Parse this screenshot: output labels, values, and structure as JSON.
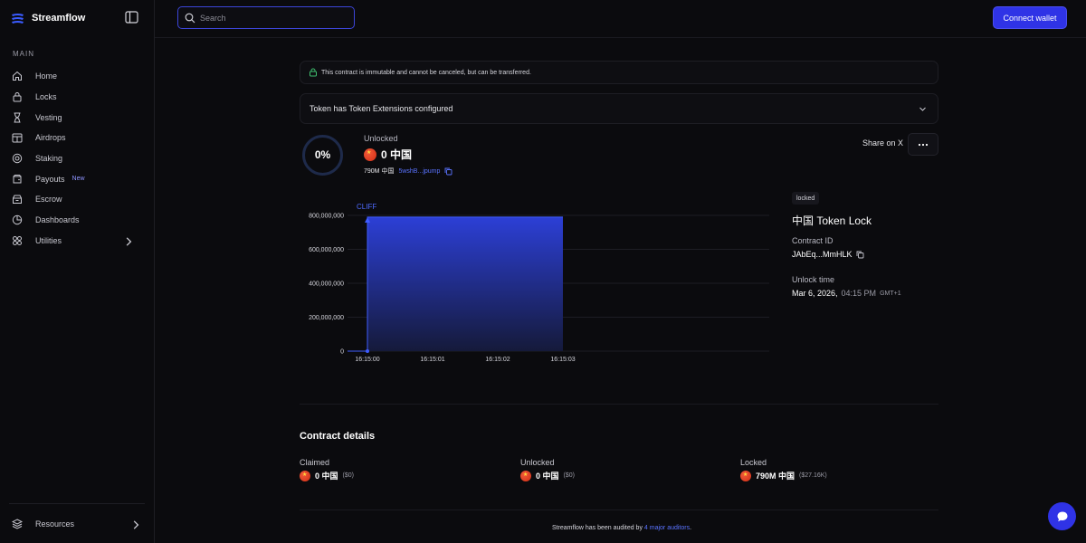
{
  "app": {
    "name": "Streamflow",
    "accent": "#2f33e6"
  },
  "sidebar": {
    "section_label": "MAIN",
    "items": [
      {
        "label": "Home",
        "icon": "home-icon"
      },
      {
        "label": "Locks",
        "icon": "lock-icon"
      },
      {
        "label": "Vesting",
        "icon": "hourglass-icon"
      },
      {
        "label": "Airdrops",
        "icon": "airdrop-icon"
      },
      {
        "label": "Staking",
        "icon": "staking-icon"
      },
      {
        "label": "Payouts",
        "icon": "payouts-icon",
        "badge": "New"
      },
      {
        "label": "Escrow",
        "icon": "escrow-icon"
      },
      {
        "label": "Dashboards",
        "icon": "dashboard-icon"
      },
      {
        "label": "Utilities",
        "icon": "utilities-icon"
      }
    ],
    "resources_label": "Resources"
  },
  "topbar": {
    "search_placeholder": "Search",
    "connect_label": "Connect wallet"
  },
  "notice": "This contract is immutable and cannot be canceled, but can be transferred.",
  "extensions_label": "Token has Token Extensions configured",
  "progress": {
    "percent_text": "0%",
    "percent": 0
  },
  "unlocked": {
    "label": "Unlocked",
    "amount": "0 中国",
    "supply": "790M 中国",
    "address": "5wshB...jpump"
  },
  "actions": {
    "share_label": "Share on X"
  },
  "chart_data": {
    "type": "area",
    "annotation": "CLIFF",
    "x": [
      "16:15:00",
      "16:15:01",
      "16:15:02",
      "16:15:03"
    ],
    "y_ticks": [
      "800,000,000",
      "600,000,000",
      "400,000,000",
      "200,000,000",
      "0"
    ],
    "ylim": [
      0,
      800000000
    ],
    "series": [
      {
        "x": [
          "16:15:00",
          "16:15:00",
          "16:15:03"
        ],
        "values": [
          0,
          790000000,
          790000000
        ]
      }
    ],
    "grid": true
  },
  "lock": {
    "status": "locked",
    "title": "中国 Token Lock",
    "contract_id_label": "Contract ID",
    "contract_id": "JAbEq...MmHLK",
    "unlock_time_label": "Unlock time",
    "unlock_date": "Mar 6, 2026,",
    "unlock_time": "04:15 PM",
    "unlock_tz": "GMT+1"
  },
  "details": {
    "title": "Contract details",
    "columns": [
      {
        "label": "Claimed",
        "amount": "0 中国",
        "usd": "($0)"
      },
      {
        "label": "Unlocked",
        "amount": "0 中国",
        "usd": "($0)"
      },
      {
        "label": "Locked",
        "amount": "790M 中国",
        "usd": "($27.16K)"
      }
    ]
  },
  "footer": {
    "audit_prefix": "Streamflow has been audited by",
    "audit_link": "4 major auditors",
    "audit_suffix": "."
  }
}
